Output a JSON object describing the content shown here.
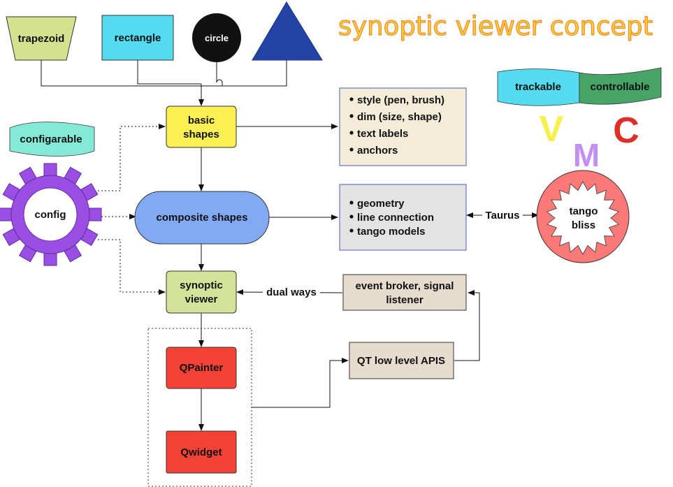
{
  "title": "synoptic viewer concept",
  "shapes": {
    "trapezoid": "trapezoid",
    "rectangle": "rectangle",
    "circle": "circle"
  },
  "nodes": {
    "basic_shapes": [
      "basic",
      "shapes"
    ],
    "composite_shapes": "composite shapes",
    "synoptic_viewer": [
      "synoptic",
      "viewer"
    ],
    "qpainter": "QPainter",
    "qwidget": "Qwidget",
    "event_broker": [
      "event broker, signal",
      "listener"
    ],
    "qt_apis": "QT low level APIS",
    "config": "config",
    "configurable": "configarable",
    "tango_bliss": [
      "tango",
      "bliss"
    ],
    "trackable": "trackable",
    "controllable": "controllable"
  },
  "lists": {
    "basic_props": [
      "style (pen, brush)",
      "dim (size, shape)",
      "text labels",
      "anchors"
    ],
    "composite_props": [
      "geometry",
      "line connection",
      "tango models"
    ]
  },
  "edge_labels": {
    "taurus": "Taurus",
    "dual_ways": "dual ways"
  },
  "mvc": {
    "v": "V",
    "m": "M",
    "c": "C"
  },
  "colors": {
    "trapezoid": "#d4e28f",
    "rectangle": "#55dbef",
    "circle": "#111111",
    "triangle": "#2244a4",
    "basic_shapes": "#fbf053",
    "composite_shapes": "#82aaf4",
    "synoptic_viewer": "#d3e39a",
    "qpainter": "#f44236",
    "qwidget": "#f44236",
    "list_basic": "#f5ecd8",
    "list_composite": "#e3e3e3",
    "beige_box": "#e5dccd",
    "gear": "#9b4ee3",
    "tango": "#fb7a78",
    "trackable": "#55dbef",
    "controllable": "#46a467",
    "configurable": "#84ead7",
    "v": "#f7ef4a",
    "m": "#c38ff0",
    "c": "#dc3128"
  }
}
